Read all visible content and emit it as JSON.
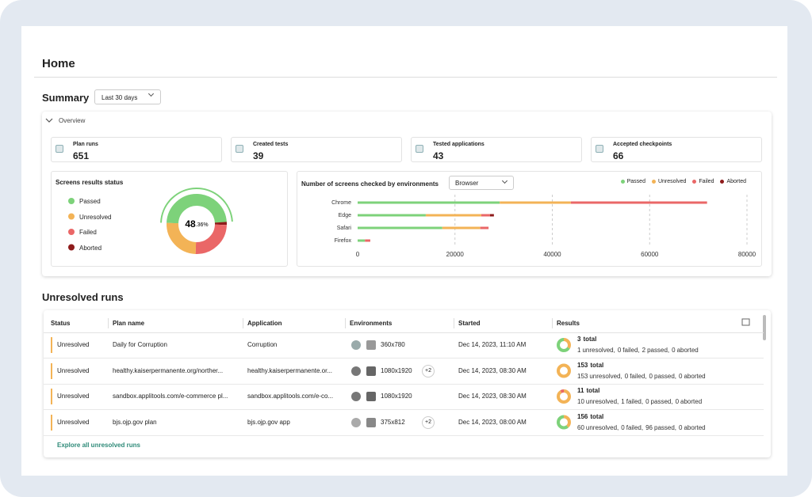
{
  "header": {
    "title": "Home"
  },
  "summary": {
    "title": "Summary",
    "period": "Last 30 days",
    "overview": "Overview",
    "stats": [
      {
        "label": "Plan runs",
        "value": 651
      },
      {
        "label": "Created tests",
        "value": 39
      },
      {
        "label": "Tested applications",
        "value": 43
      },
      {
        "label": "Accepted checkpoints",
        "value": 66
      }
    ]
  },
  "chart_data": [
    {
      "type": "pie",
      "style": "donut",
      "title": "Screens results status",
      "categories": [
        "Passed",
        "Unresolved",
        "Failed",
        "Aborted"
      ],
      "values": [
        48.36,
        25,
        25,
        1.64
      ],
      "colors": [
        "#7dd27a",
        "#f3b356",
        "#ea6767",
        "#8e1b1b"
      ],
      "center_label": [
        "48",
        ".36%"
      ]
    },
    {
      "type": "bar",
      "orientation": "horizontal",
      "stacked": true,
      "title": "Number of screens checked by environments",
      "selector": "Browser",
      "categories": [
        "Chrome",
        "Edge",
        "Safari",
        "Firefox"
      ],
      "series": [
        {
          "name": "Passed",
          "color": "#7dd27a",
          "values": [
            29200,
            14000,
            17400,
            1500
          ]
        },
        {
          "name": "Unresolved",
          "color": "#f3b356",
          "values": [
            14600,
            11400,
            7800,
            0
          ]
        },
        {
          "name": "Failed",
          "color": "#ea6767",
          "values": [
            28000,
            1800,
            1700,
            1100
          ]
        },
        {
          "name": "Aborted",
          "color": "#8e1b1b",
          "values": [
            0,
            800,
            0,
            0
          ]
        }
      ],
      "xlim": [
        0,
        80000
      ],
      "xticks": [
        0,
        20000,
        40000,
        60000,
        80000
      ],
      "grid": true,
      "legend": "top-right"
    }
  ],
  "unresolved_runs": {
    "title": "Unresolved runs",
    "columns": [
      "Status",
      "Plan name",
      "Application",
      "Environments",
      "Started",
      "Results"
    ],
    "segment_colors": [
      "#f3b356",
      "#ea6767",
      "#7dd27a",
      "#8e1b1b"
    ],
    "rows": [
      {
        "status": "Unresolved",
        "plan": "Daily for Corruption",
        "application": "Corruption",
        "environments": {
          "resolution": "360x780"
        },
        "started": "Dec 14, 2023, 11:10 AM",
        "results": {
          "total": 3,
          "total_label": "total",
          "breakdown": [
            {
              "count": 1,
              "label": "unresolved"
            },
            {
              "count": 0,
              "label": "failed"
            },
            {
              "count": 2,
              "label": "passed"
            },
            {
              "count": 0,
              "label": "aborted"
            }
          ]
        }
      },
      {
        "status": "Unresolved",
        "plan": "healthy.kaiserpermanente.org/norther...",
        "application": "healthy.kaiserpermanente.or...",
        "environments": {
          "resolution": "1080x1920",
          "extra": "+2"
        },
        "started": "Dec 14, 2023, 08:30 AM",
        "results": {
          "total": 153,
          "total_label": "total",
          "breakdown": [
            {
              "count": 153,
              "label": "unresolved"
            },
            {
              "count": 0,
              "label": "failed"
            },
            {
              "count": 0,
              "label": "passed"
            },
            {
              "count": 0,
              "label": "aborted"
            }
          ]
        }
      },
      {
        "status": "Unresolved",
        "plan": "sandbox.applitools.com/e-commerce pl...",
        "application": "sandbox.applitools.com/e-co...",
        "environments": {
          "resolution": "1080x1920"
        },
        "started": "Dec 14, 2023, 08:30 AM",
        "results": {
          "total": 11,
          "total_label": "total",
          "breakdown": [
            {
              "count": 10,
              "label": "unresolved"
            },
            {
              "count": 1,
              "label": "failed"
            },
            {
              "count": 0,
              "label": "passed"
            },
            {
              "count": 0,
              "label": "aborted"
            }
          ]
        }
      },
      {
        "status": "Unresolved",
        "plan": "bjs.ojp.gov plan",
        "application": "bjs.ojp.gov app",
        "environments": {
          "resolution": "375x812",
          "extra": "+2"
        },
        "started": "Dec 14, 2023, 08:00 AM",
        "results": {
          "total": 156,
          "total_label": "total",
          "breakdown": [
            {
              "count": 60,
              "label": "unresolved"
            },
            {
              "count": 0,
              "label": "failed"
            },
            {
              "count": 96,
              "label": "passed"
            },
            {
              "count": 0,
              "label": "aborted"
            }
          ]
        }
      }
    ],
    "footer_link": "Explore all unresolved runs"
  }
}
